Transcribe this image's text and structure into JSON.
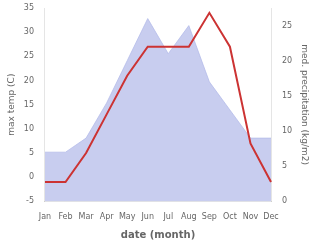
{
  "chart_data": {
    "type": "line",
    "xlabel": "date (month)",
    "ylabel": "max temp (C)",
    "y2label": "med. precipitation (kg/m2)",
    "categories": [
      "Jan",
      "Feb",
      "Mar",
      "Apr",
      "May",
      "Jun",
      "Jul",
      "Aug",
      "Sep",
      "Oct",
      "Nov",
      "Dec"
    ],
    "series": [
      {
        "type": "area",
        "color": "#b0b8e8",
        "axis": "y2",
        "values": [
          7,
          7,
          9,
          14,
          20,
          26,
          21,
          25,
          17,
          13,
          9,
          9
        ]
      },
      {
        "type": "line",
        "color": "#cc3333",
        "values": [
          -1,
          -1,
          5,
          13,
          21,
          27,
          27,
          27,
          34,
          27,
          7,
          -1
        ]
      }
    ],
    "ylim": [
      -5,
      35
    ],
    "yticks": [
      -5,
      0,
      5,
      10,
      15,
      20,
      25,
      30,
      35
    ],
    "y2lim": [
      0,
      27.5
    ],
    "y2ticks": [
      0,
      5,
      10,
      15,
      20,
      25
    ],
    "grid": false
  }
}
